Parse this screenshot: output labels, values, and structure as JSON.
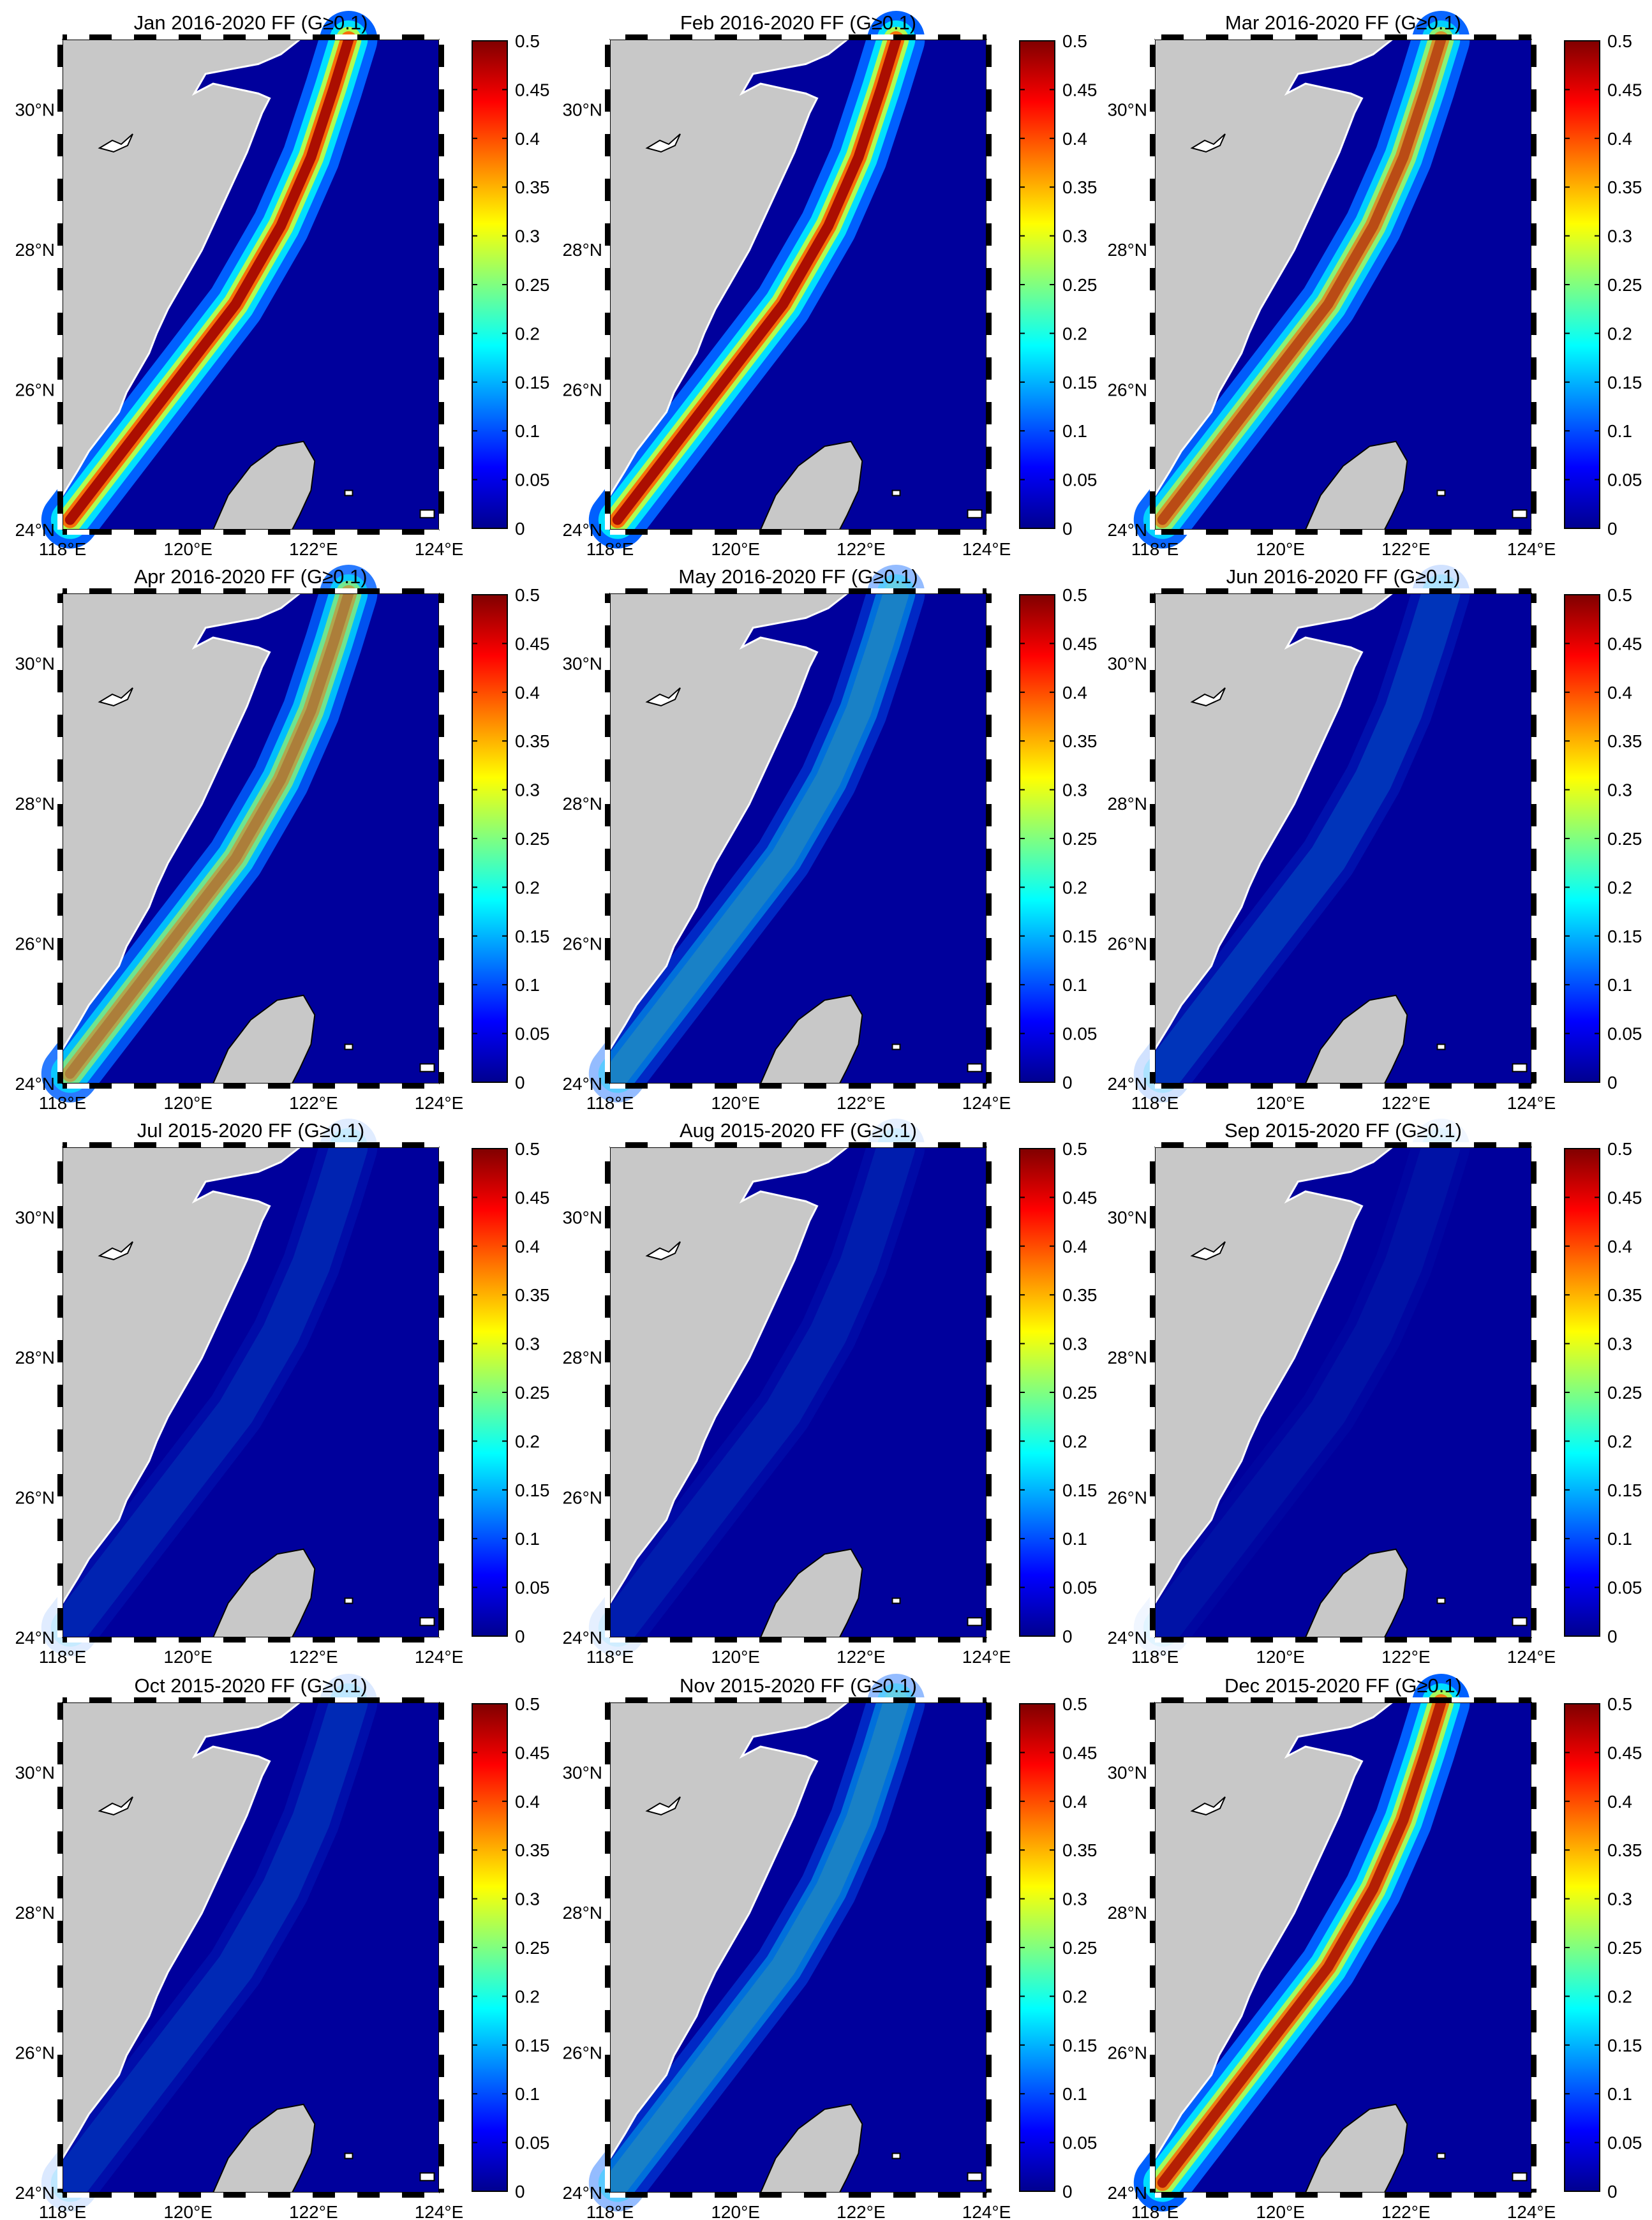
{
  "figure": {
    "rows": 4,
    "cols": 3,
    "colorbar": {
      "min": 0,
      "max": 0.5,
      "tick_labels": [
        "0",
        "0.05",
        "0.1",
        "0.15",
        "0.2",
        "0.25",
        "0.3",
        "0.35",
        "0.4",
        "0.45",
        "0.5"
      ],
      "colormap": "jet",
      "stops": [
        "#00008f",
        "#0000ff",
        "#0080ff",
        "#00ffff",
        "#80ff80",
        "#ffff00",
        "#ff8000",
        "#ff0000",
        "#800000"
      ]
    },
    "map": {
      "lon_range": [
        118,
        124
      ],
      "lat_range": [
        24,
        31
      ],
      "x_tick_labels": [
        "118°E",
        "120°E",
        "122°E",
        "124°E"
      ],
      "y_tick_labels": [
        "24°N",
        "26°N",
        "28°N",
        "30°N"
      ],
      "land_color": "#c8c8c8",
      "ocean_background": "#00009c"
    },
    "panels": [
      {
        "title": "Jan 2016-2020 FF (G≥0.1)",
        "intensity": 0.95
      },
      {
        "title": "Feb 2016-2020 FF (G≥0.1)",
        "intensity": 0.95
      },
      {
        "title": "Mar 2016-2020 FF (G≥0.1)",
        "intensity": 0.8
      },
      {
        "title": "Apr 2016-2020 FF (G≥0.1)",
        "intensity": 0.7
      },
      {
        "title": "May 2016-2020 FF (G≥0.1)",
        "intensity": 0.35
      },
      {
        "title": "Jun 2016-2020 FF (G≥0.1)",
        "intensity": 0.15
      },
      {
        "title": "Jul 2015-2020 FF (G≥0.1)",
        "intensity": 0.1
      },
      {
        "title": "Aug 2015-2020 FF (G≥0.1)",
        "intensity": 0.08
      },
      {
        "title": "Sep 2015-2020 FF (G≥0.1)",
        "intensity": 0.05
      },
      {
        "title": "Oct 2015-2020 FF (G≥0.1)",
        "intensity": 0.12
      },
      {
        "title": "Nov 2015-2020 FF (G≥0.1)",
        "intensity": 0.35
      },
      {
        "title": "Dec 2015-2020 FF (G≥0.1)",
        "intensity": 0.9
      }
    ]
  }
}
